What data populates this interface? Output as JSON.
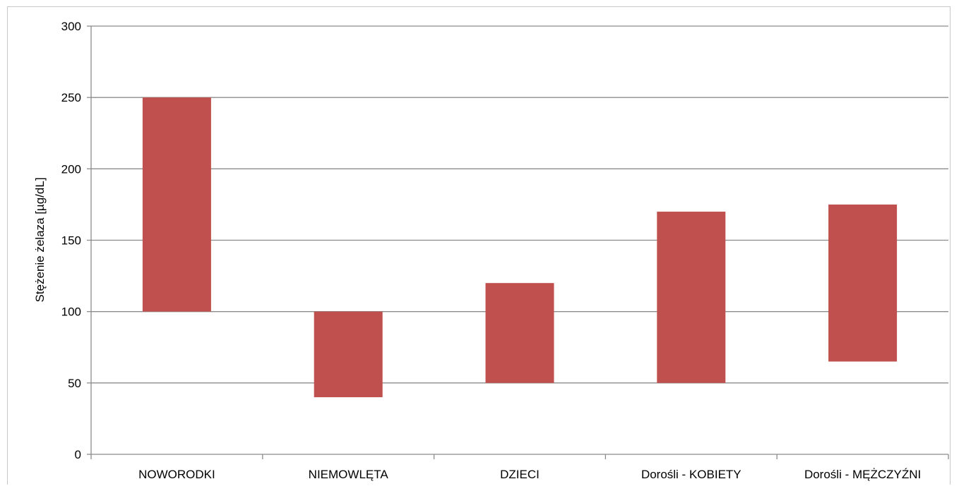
{
  "chart_data": {
    "type": "bar",
    "subtype": "floating-range",
    "title": "",
    "xlabel": "",
    "ylabel": "Stężenie żelaza [µg/dL]",
    "ylim": [
      0,
      300
    ],
    "yticks": [
      0,
      50,
      100,
      150,
      200,
      250,
      300
    ],
    "grid": true,
    "legend": "none",
    "categories": [
      "NOWORODKI",
      "NIEMOWLĘTA",
      "DZIECI",
      "Dorośli - KOBIETY",
      "Dorośli - MĘŻCZYŹNI"
    ],
    "series": [
      {
        "color": "#c0504d",
        "ranges": [
          [
            100,
            250
          ],
          [
            40,
            100
          ],
          [
            50,
            120
          ],
          [
            50,
            170
          ],
          [
            65,
            175
          ]
        ]
      }
    ]
  }
}
